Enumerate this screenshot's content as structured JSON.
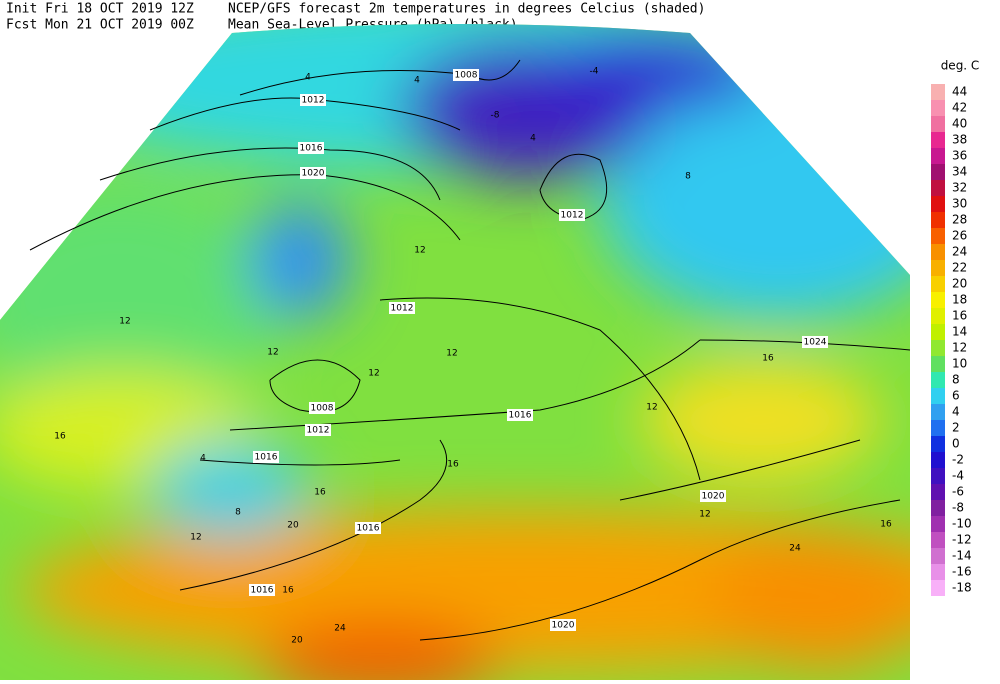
{
  "header": {
    "init": "Init  Fri 18 OCT 2019 12Z",
    "fcst": "Fcst Mon 21 OCT 2019 00Z",
    "title": "NCEP/GFS forecast 2m temperatures in degrees Celcius (shaded)",
    "subtitle": "Mean Sea-Level Pressure (hPa) (black)."
  },
  "legend": {
    "title": "deg. C",
    "levels": [
      {
        "value": 44,
        "color": "#f8b0b0"
      },
      {
        "value": 42,
        "color": "#f890b0"
      },
      {
        "value": 40,
        "color": "#f070a0"
      },
      {
        "value": 38,
        "color": "#e82890"
      },
      {
        "value": 36,
        "color": "#c81890"
      },
      {
        "value": 34,
        "color": "#a01070"
      },
      {
        "value": 32,
        "color": "#c01040"
      },
      {
        "value": 30,
        "color": "#e01010"
      },
      {
        "value": 28,
        "color": "#f03000"
      },
      {
        "value": 26,
        "color": "#f86000"
      },
      {
        "value": 24,
        "color": "#f89000"
      },
      {
        "value": 22,
        "color": "#f8b000"
      },
      {
        "value": 20,
        "color": "#f8d000"
      },
      {
        "value": 18,
        "color": "#f8f000"
      },
      {
        "value": 16,
        "color": "#e0f000"
      },
      {
        "value": 14,
        "color": "#c0f000"
      },
      {
        "value": 12,
        "color": "#90e830"
      },
      {
        "value": 10,
        "color": "#60e060"
      },
      {
        "value": 8,
        "color": "#30e8b0"
      },
      {
        "value": 6,
        "color": "#30d0f0"
      },
      {
        "value": 4,
        "color": "#30a0f0"
      },
      {
        "value": 2,
        "color": "#2070f0"
      },
      {
        "value": 0,
        "color": "#1030e0"
      },
      {
        "value": -2,
        "color": "#2010d0"
      },
      {
        "value": -4,
        "color": "#4010c0"
      },
      {
        "value": -6,
        "color": "#6010b0"
      },
      {
        "value": -8,
        "color": "#8020a0"
      },
      {
        "value": -10,
        "color": "#a030b0"
      },
      {
        "value": -12,
        "color": "#c050c0"
      },
      {
        "value": -14,
        "color": "#d070d0"
      },
      {
        "value": -16,
        "color": "#e890e8"
      },
      {
        "value": -18,
        "color": "#f8b0f8"
      }
    ]
  },
  "map": {
    "isobar_labels": [
      "1008",
      "1012",
      "1016",
      "1020",
      "1012",
      "1012",
      "1008",
      "1012",
      "1016",
      "1016",
      "1016",
      "1016",
      "1020",
      "1024",
      "1020"
    ],
    "temperature_labels": [
      "4",
      "4",
      "-4",
      "-8",
      "4",
      "8",
      "12",
      "12",
      "12",
      "12",
      "12",
      "16",
      "16",
      "16",
      "20",
      "20",
      "24",
      "12",
      "12",
      "16",
      "8",
      "4",
      "12",
      "16",
      "24",
      "16"
    ]
  }
}
